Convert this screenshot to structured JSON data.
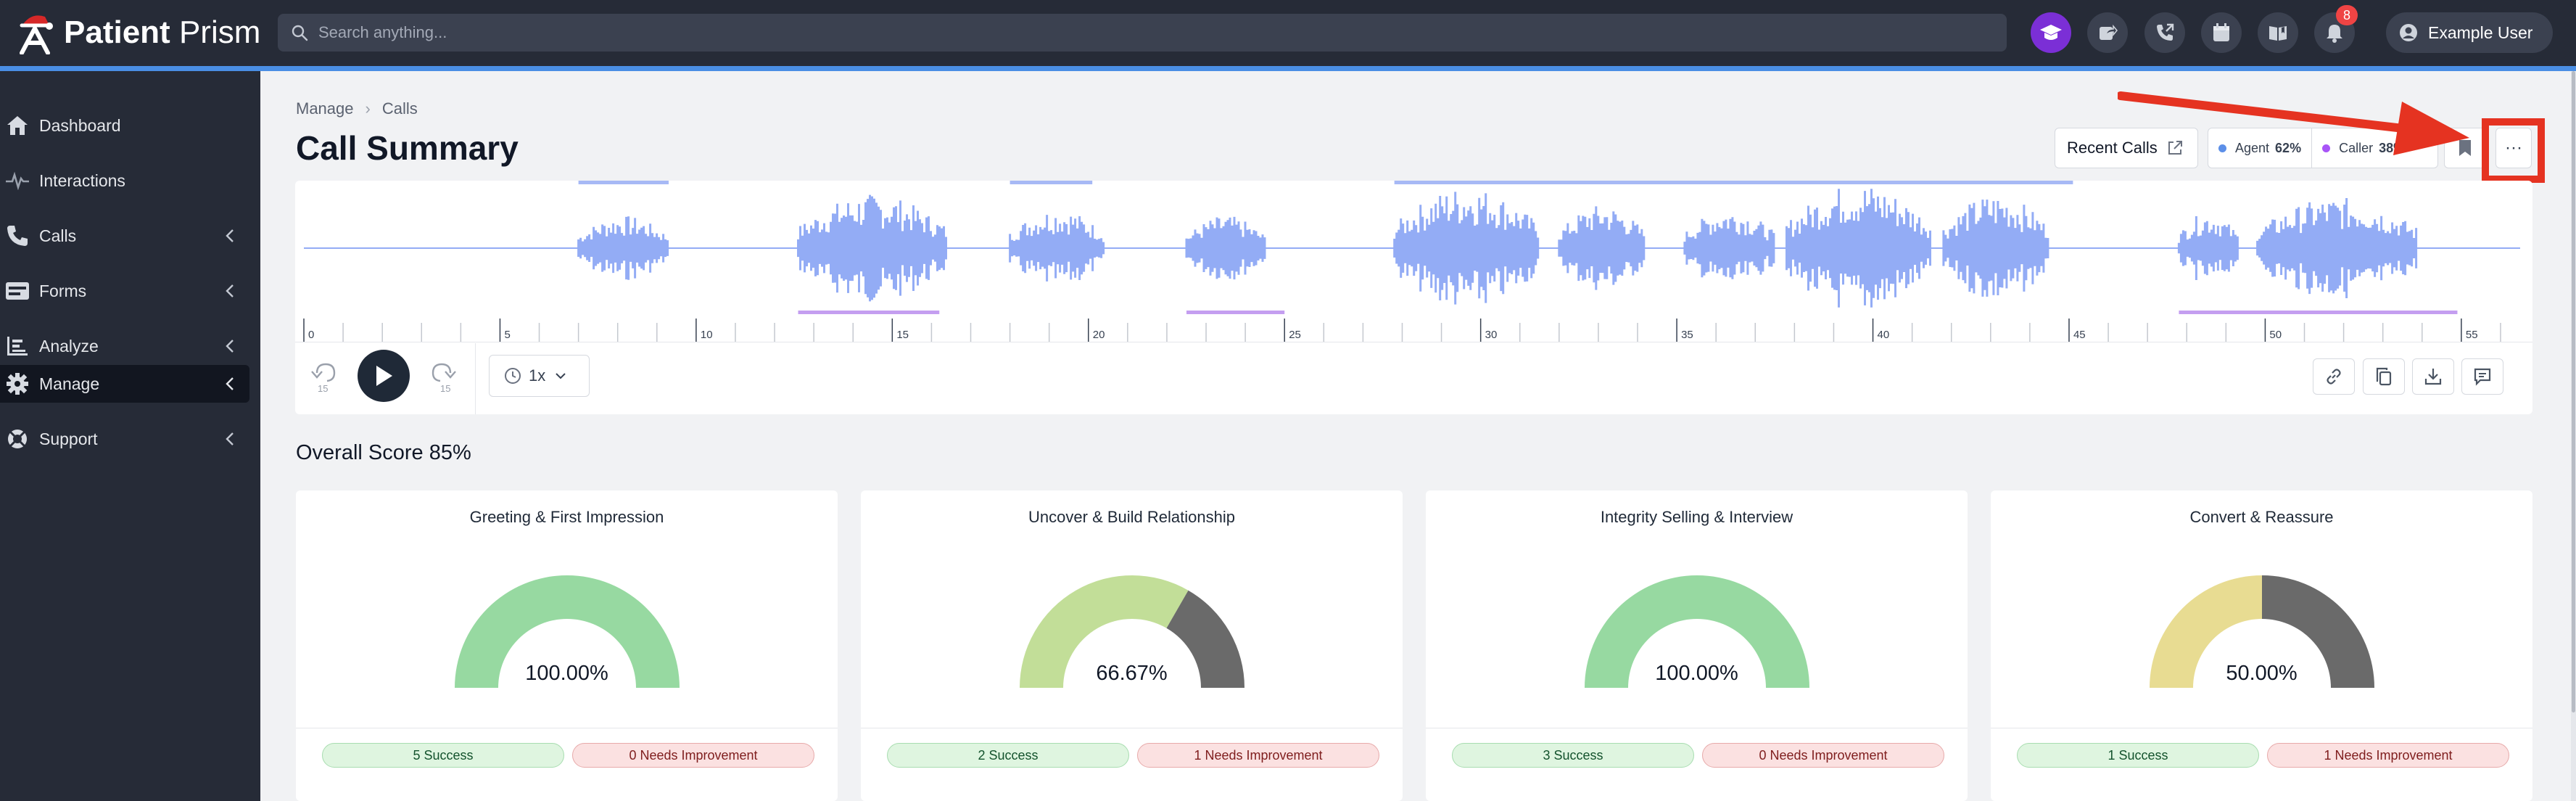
{
  "app": {
    "brand_bold": "Patient",
    "brand_light": "Prism",
    "search_placeholder": "Search anything...",
    "notification_count": "8",
    "user_name": "Example User"
  },
  "sidebar": {
    "items": [
      {
        "label": "Dashboard",
        "icon": "home-icon",
        "has_chevron": false,
        "active": false
      },
      {
        "label": "Interactions",
        "icon": "pulse-icon",
        "has_chevron": false,
        "active": false
      },
      {
        "label": "Calls",
        "icon": "phone-icon",
        "has_chevron": true,
        "active": false
      },
      {
        "label": "Forms",
        "icon": "form-icon",
        "has_chevron": true,
        "active": false
      },
      {
        "label": "Analyze",
        "icon": "analyze-icon",
        "has_chevron": true,
        "active": false
      },
      {
        "label": "Manage",
        "icon": "gear-icon",
        "has_chevron": true,
        "active": true
      },
      {
        "label": "Support",
        "icon": "lifebuoy-icon",
        "has_chevron": true,
        "active": false
      }
    ]
  },
  "breadcrumb": {
    "items": [
      "Manage",
      "Calls"
    ],
    "separator": "›"
  },
  "page": {
    "title": "Call Summary"
  },
  "header_actions": {
    "recent_calls_label": "Recent Calls",
    "agent_label": "Agent",
    "agent_pct": "62%",
    "caller_label": "Caller",
    "caller_pct": "38%",
    "more_label": "···"
  },
  "colors": {
    "agent": "#5c8fe8",
    "caller": "#a855f7",
    "waveform": "#93acf5",
    "success_gauge": "#97d9a1",
    "partial_gauge": "#c2de98",
    "neutral_gauge": "#e8dc92",
    "fail_gauge": "#6a6a6a",
    "highlight_box": "#e53321"
  },
  "player": {
    "timeline_ticks": [
      "0",
      "5",
      "10",
      "15",
      "20",
      "25",
      "30",
      "35",
      "40",
      "45",
      "50",
      "55"
    ],
    "speed": "1x",
    "skip_back_label": "15",
    "skip_forward_label": "15"
  },
  "overall": {
    "label": "Overall Score 85%"
  },
  "score_cards": [
    {
      "title": "Greeting & First Impression",
      "percent": "100.00%",
      "fraction": 1.0,
      "success": "5 Success",
      "needs": "0 Needs Improvement",
      "fill_color": "#97d9a1"
    },
    {
      "title": "Uncover & Build Relationship",
      "percent": "66.67%",
      "fraction": 0.6667,
      "success": "2 Success",
      "needs": "1 Needs Improvement",
      "fill_color": "#c2de98"
    },
    {
      "title": "Integrity Selling & Interview",
      "percent": "100.00%",
      "fraction": 1.0,
      "success": "3 Success",
      "needs": "0 Needs Improvement",
      "fill_color": "#97d9a1"
    },
    {
      "title": "Convert & Reassure",
      "percent": "50.00%",
      "fraction": 0.5,
      "success": "1 Success",
      "needs": "1 Needs Improvement",
      "fill_color": "#e8dc92"
    }
  ]
}
